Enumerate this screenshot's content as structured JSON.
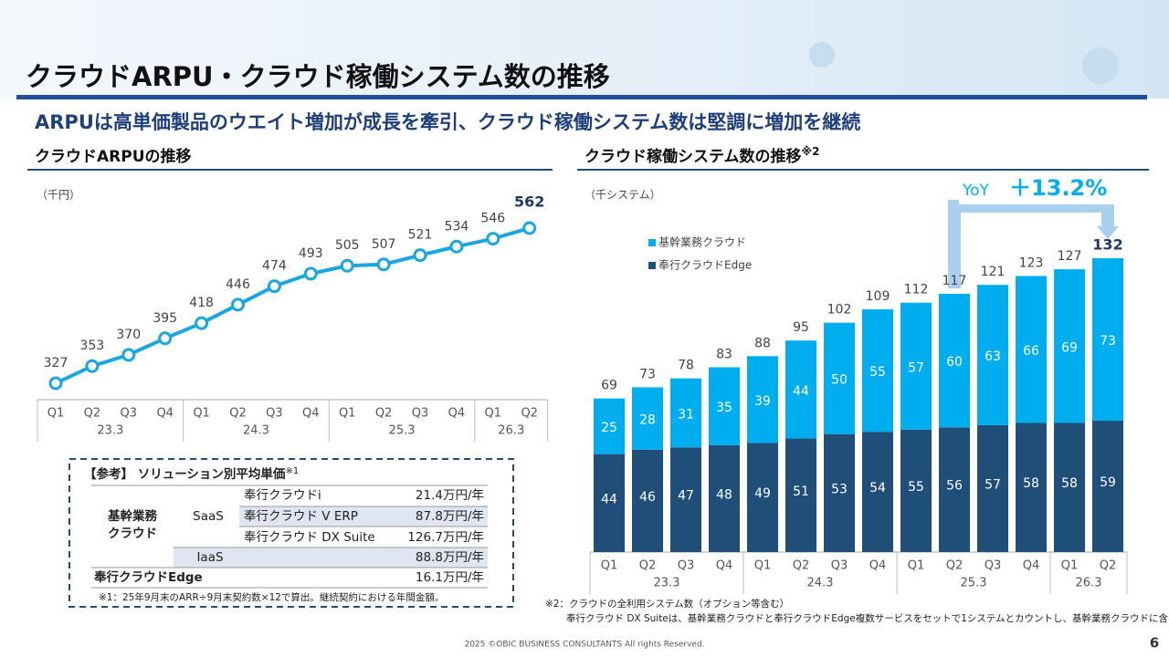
{
  "title": "クラウドARPU・クラウド稼働システム数の推移",
  "subtitle": "ARPUは高単価製品のウエイト増加が成長を牽引、クラウド稼働システム数は堅調に増加を継続",
  "chart_data": [
    {
      "type": "line",
      "title": "クラウドARPUの推移",
      "unit": "（千円）",
      "color": "#1aa7e0",
      "categories": [
        "Q1",
        "Q2",
        "Q3",
        "Q4",
        "Q1",
        "Q2",
        "Q3",
        "Q4",
        "Q1",
        "Q2",
        "Q3",
        "Q4",
        "Q1",
        "Q2"
      ],
      "year_labels": [
        "23.3",
        "24.3",
        "25.3",
        "26.3"
      ],
      "values": [
        327,
        353,
        370,
        395,
        418,
        446,
        474,
        493,
        505,
        507,
        521,
        534,
        546,
        562
      ]
    },
    {
      "type": "stacked_bar",
      "title": "クラウド稼働システム数の推移",
      "title_note": "※2",
      "unit": "（千システム）",
      "categories": [
        "Q1",
        "Q2",
        "Q3",
        "Q4",
        "Q1",
        "Q2",
        "Q3",
        "Q4",
        "Q1",
        "Q2",
        "Q3",
        "Q4",
        "Q1",
        "Q2"
      ],
      "year_labels": [
        "23.3",
        "24.3",
        "25.3",
        "26.3"
      ],
      "series": [
        {
          "name": "奉行クラウドEdge",
          "color": "#1f4e79",
          "values": [
            44,
            46,
            47,
            48,
            49,
            51,
            53,
            54,
            55,
            56,
            57,
            58,
            58,
            59
          ]
        },
        {
          "name": "基幹業務クラウド",
          "color": "#00aeef",
          "values": [
            25,
            28,
            31,
            35,
            39,
            44,
            50,
            55,
            57,
            60,
            63,
            66,
            69,
            73
          ]
        }
      ],
      "totals": [
        69,
        73,
        78,
        83,
        88,
        95,
        102,
        109,
        112,
        117,
        121,
        123,
        127,
        132
      ],
      "yoy_label": "YoY",
      "yoy_value": "＋13.2%"
    }
  ],
  "table": {
    "title": "【参考】 ソリューション別平均単価",
    "title_note": "※1",
    "group": [
      "基幹業務",
      "クラウド"
    ],
    "saas": "SaaS",
    "iaas": "IaaS",
    "rows": [
      [
        "奉行クラウドi",
        "21.4万円/年"
      ],
      [
        "奉行クラウド V ERP",
        "87.8万円/年"
      ],
      [
        "奉行クラウド DX Suite",
        "126.7万円/年"
      ],
      [
        null,
        "88.8万円/年"
      ],
      [
        "奉行クラウドEdge",
        "16.1万円/年"
      ]
    ],
    "note": "※1：25年9月末のARR÷9月末契約数×12で算出。継続契約における年間金額。"
  },
  "footnotes": [
    "※2：クラウドの全利用システム数（オプション等含む）",
    "奉行クラウド DX Suiteは、基幹業務クラウドと奉行クラウドEdge複数サービスをセットで1システムとカウントし、基幹業務クラウドに含める"
  ],
  "footer": "2025 ©OBIC BUSINESS CONSULTANTS All rights Reserved.",
  "page": "6"
}
